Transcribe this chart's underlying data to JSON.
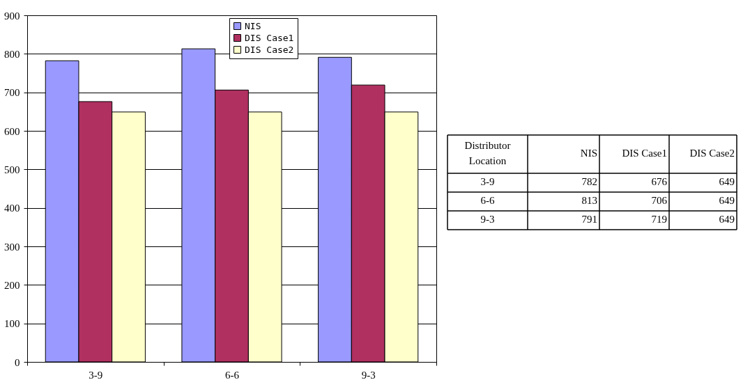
{
  "chart_data": [
    {
      "type": "bar",
      "categories": [
        "3-9",
        "6-6",
        "9-3"
      ],
      "series": [
        {
          "name": "NIS",
          "color": "#9999ff",
          "values": [
            782,
            813,
            791
          ]
        },
        {
          "name": "DIS Case1",
          "color": "#b03060",
          "values": [
            676,
            706,
            719
          ]
        },
        {
          "name": "DIS Case2",
          "color": "#ffffcc",
          "values": [
            649,
            649,
            649
          ]
        }
      ],
      "ylim": [
        0,
        900
      ],
      "yticks": [
        0,
        100,
        200,
        300,
        400,
        500,
        600,
        700,
        800,
        900
      ],
      "grid": "y",
      "legend": "top"
    },
    {
      "type": "other",
      "xlabel": "Distributor Location",
      "categories": [
        "3-9",
        "6-6",
        "9-3"
      ],
      "series": [
        {
          "name": "NIS",
          "values": [
            782,
            813,
            791
          ]
        },
        {
          "name": "DIS Case1",
          "values": [
            676,
            706,
            719
          ]
        },
        {
          "name": "DIS Case2",
          "values": [
            649,
            649,
            649
          ]
        }
      ],
      "data_labels": true
    }
  ]
}
